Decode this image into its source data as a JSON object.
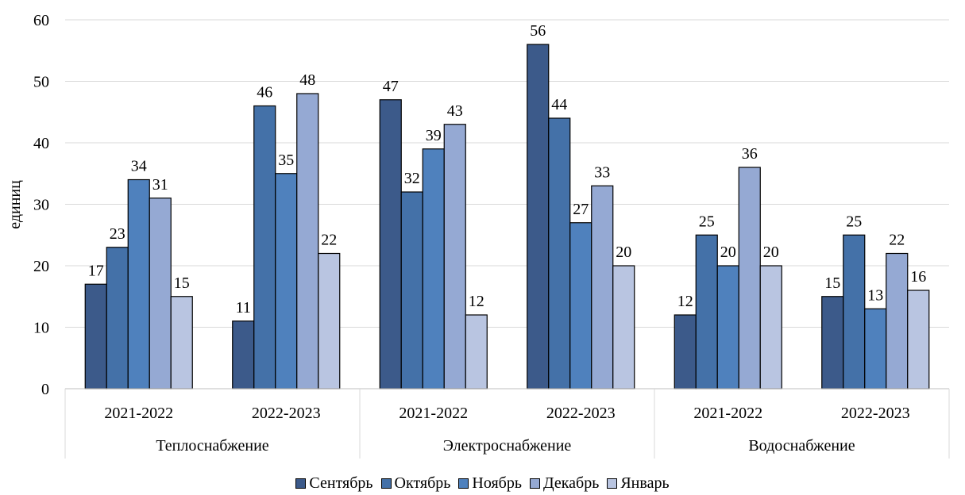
{
  "chart_data": {
    "type": "bar",
    "ylabel": "единиц",
    "ylim": [
      0,
      60
    ],
    "yticks": [
      0,
      10,
      20,
      30,
      40,
      50,
      60
    ],
    "grid": true,
    "legend_position": "bottom",
    "groups": [
      "Теплоснабжение",
      "Электроснабжение",
      "Водоснабжение"
    ],
    "categories": [
      "2021-2022",
      "2022-2023",
      "2021-2022",
      "2022-2023",
      "2021-2022",
      "2022-2023"
    ],
    "category_group": [
      0,
      0,
      1,
      1,
      2,
      2
    ],
    "series": [
      {
        "name": "Сентябрь",
        "color": "#3c5a8a",
        "values": [
          17,
          11,
          47,
          56,
          12,
          15
        ]
      },
      {
        "name": "Октябрь",
        "color": "#4471a8",
        "values": [
          23,
          46,
          32,
          44,
          25,
          25
        ]
      },
      {
        "name": "Ноябрь",
        "color": "#4f81bd",
        "values": [
          34,
          35,
          39,
          27,
          20,
          13
        ]
      },
      {
        "name": "Декабрь",
        "color": "#95a9d3",
        "values": [
          31,
          48,
          43,
          33,
          36,
          22
        ]
      },
      {
        "name": "Январь",
        "color": "#b9c5e1",
        "values": [
          15,
          22,
          12,
          20,
          20,
          16
        ]
      }
    ]
  }
}
